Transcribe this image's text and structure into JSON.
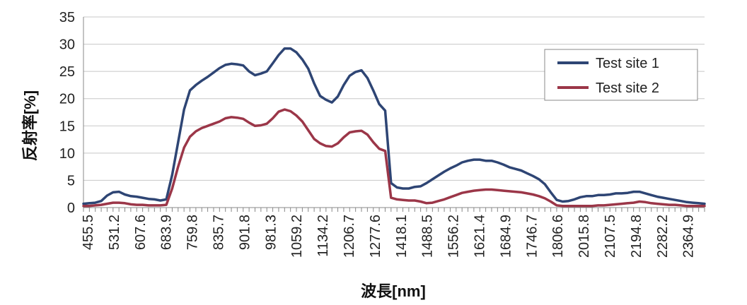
{
  "chart_data": {
    "type": "line",
    "xlabel": "波長[nm]",
    "ylabel": "反射率[%]",
    "ylim": [
      0,
      35
    ],
    "ytick_step": 5,
    "grid": "horizontal",
    "legend_position": "top-right",
    "x_tick_labels": [
      "455.5",
      "531.2",
      "607.6",
      "683.9",
      "759.8",
      "835.7",
      "901.8",
      "981.3",
      "1059.2",
      "1134.2",
      "1206.7",
      "1277.6",
      "1418.1",
      "1488.5",
      "1556.2",
      "1621.4",
      "1684.9",
      "1746.7",
      "1806.6",
      "2015.8",
      "2107.5",
      "2194.8",
      "2282.2",
      "2364.9"
    ],
    "series": [
      {
        "name": "Test site 1",
        "color": "#2e4574",
        "values": [
          0.7,
          0.8,
          0.9,
          1.2,
          2.2,
          2.8,
          2.9,
          2.4,
          2.1,
          2.0,
          1.8,
          1.6,
          1.5,
          1.3,
          1.5,
          6.0,
          12.0,
          18.0,
          21.5,
          22.5,
          23.3,
          24.0,
          24.8,
          25.6,
          26.2,
          26.4,
          26.3,
          26.1,
          25.0,
          24.3,
          24.6,
          25.0,
          26.5,
          28.0,
          29.2,
          29.2,
          28.5,
          27.2,
          25.5,
          22.8,
          20.5,
          19.8,
          19.3,
          20.4,
          22.5,
          24.2,
          24.9,
          25.2,
          23.8,
          21.5,
          19.0,
          17.8,
          4.5,
          3.7,
          3.5,
          3.5,
          3.8,
          3.9,
          4.5,
          5.2,
          5.9,
          6.6,
          7.2,
          7.7,
          8.3,
          8.6,
          8.8,
          8.8,
          8.6,
          8.6,
          8.3,
          7.9,
          7.4,
          7.1,
          6.8,
          6.3,
          5.8,
          5.2,
          4.3,
          2.8,
          1.4,
          1.1,
          1.2,
          1.5,
          1.9,
          2.1,
          2.1,
          2.3,
          2.3,
          2.4,
          2.6,
          2.6,
          2.7,
          2.9,
          2.9,
          2.6,
          2.3,
          2.0,
          1.8,
          1.6,
          1.4,
          1.2,
          1.0,
          0.9,
          0.8,
          0.7
        ]
      },
      {
        "name": "Test site 2",
        "color": "#9b3648",
        "values": [
          0.3,
          0.3,
          0.4,
          0.5,
          0.7,
          0.9,
          0.9,
          0.8,
          0.6,
          0.5,
          0.5,
          0.4,
          0.4,
          0.4,
          0.5,
          3.5,
          7.5,
          11.0,
          13.0,
          14.0,
          14.6,
          15.0,
          15.4,
          15.8,
          16.4,
          16.6,
          16.5,
          16.3,
          15.6,
          15.0,
          15.1,
          15.4,
          16.4,
          17.6,
          18.0,
          17.7,
          16.9,
          15.8,
          14.2,
          12.6,
          11.8,
          11.3,
          11.2,
          11.8,
          12.9,
          13.8,
          14.0,
          14.1,
          13.4,
          12.0,
          10.8,
          10.4,
          1.8,
          1.5,
          1.4,
          1.3,
          1.3,
          1.1,
          0.8,
          0.9,
          1.2,
          1.5,
          1.9,
          2.3,
          2.7,
          2.9,
          3.1,
          3.2,
          3.3,
          3.3,
          3.2,
          3.1,
          3.0,
          2.9,
          2.8,
          2.6,
          2.4,
          2.1,
          1.7,
          1.1,
          0.4,
          0.3,
          0.3,
          0.3,
          0.3,
          0.3,
          0.3,
          0.4,
          0.4,
          0.5,
          0.6,
          0.7,
          0.8,
          0.9,
          1.1,
          1.0,
          0.8,
          0.7,
          0.6,
          0.5,
          0.5,
          0.4,
          0.3,
          0.3,
          0.3,
          0.3
        ]
      }
    ]
  }
}
